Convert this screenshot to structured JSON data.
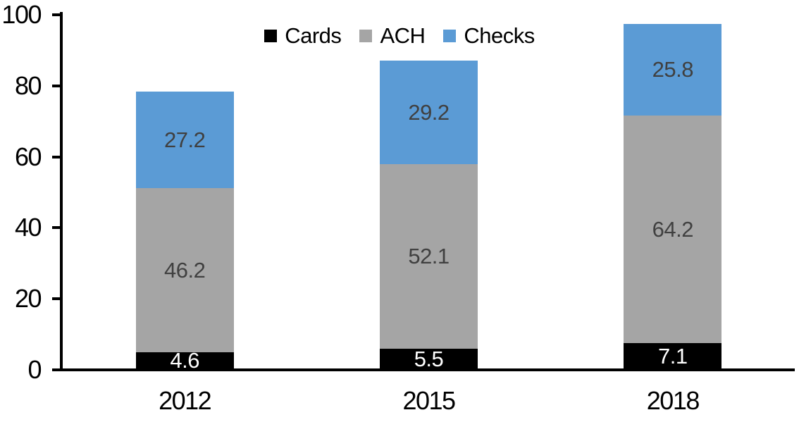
{
  "chart_data": {
    "type": "bar",
    "stacked": true,
    "title": "",
    "categories": [
      "2012",
      "2015",
      "2018"
    ],
    "series": [
      {
        "name": "Cards",
        "color": "#000000",
        "label_color": "#ffffff",
        "values": [
          4.6,
          5.5,
          7.1
        ]
      },
      {
        "name": "ACH",
        "color": "#A5A5A5",
        "label_color": "#404040",
        "values": [
          46.2,
          52.1,
          64.2
        ]
      },
      {
        "name": "Checks",
        "color": "#5B9BD5",
        "label_color": "#404040",
        "values": [
          27.2,
          29.2,
          25.8
        ]
      }
    ],
    "totals": [
      78.0,
      86.8,
      97.1
    ],
    "xlabel": "",
    "ylabel": "",
    "ylim": [
      0,
      100
    ],
    "yticks": [
      0,
      20,
      40,
      60,
      80,
      100
    ],
    "grid": false,
    "legend_position": "top",
    "axis_color": "#000000",
    "background_color": "#ffffff"
  }
}
